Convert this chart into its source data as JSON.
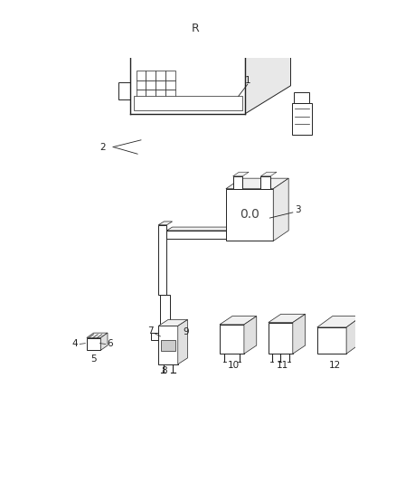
{
  "background_color": "#ffffff",
  "fig_width": 4.38,
  "fig_height": 5.33,
  "dpi": 100,
  "line_color": "#222222",
  "label_fontsize": 7.5,
  "label_color": "#222222",
  "lw": 0.7
}
